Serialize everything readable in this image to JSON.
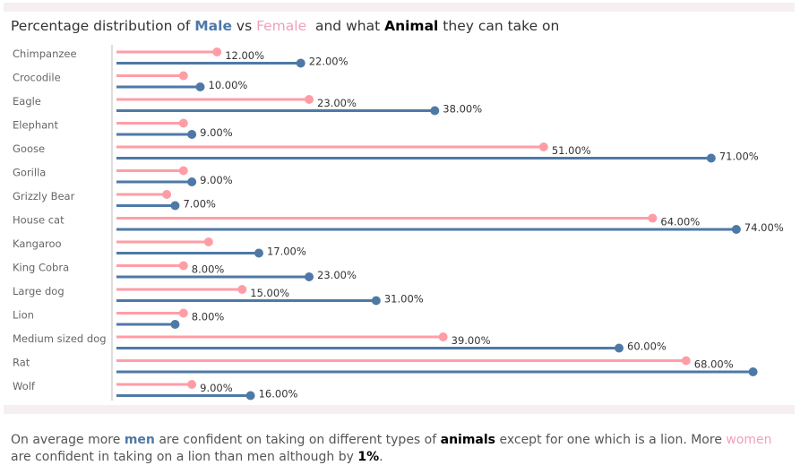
{
  "title": {
    "prefix": "Percentage distribution of ",
    "male": "Male",
    "vs": " vs ",
    "female": "Female",
    "mid": "  and what ",
    "animal": "Animal",
    "suffix": " they can take on"
  },
  "note": {
    "p1": "On average more ",
    "men": "men",
    "p2": " are confident on taking on different types of ",
    "animals": "animals",
    "p3": " except for one which is a lion. More ",
    "women": "women",
    "p4": " are confident in taking on a lion than men although by ",
    "pct": "1%",
    "p5": "."
  },
  "colors": {
    "female": "#ff9da7",
    "male": "#4e79a7"
  },
  "chart_data": {
    "type": "lollipop",
    "title": "Percentage distribution of Male vs Female and what Animal they can take on",
    "xlim": [
      0,
      78
    ],
    "categories": [
      "Chimpanzee",
      "Crocodile",
      "Eagle",
      "Elephant",
      "Goose",
      "Gorilla",
      "Grizzly Bear",
      "House cat",
      "Kangaroo",
      "King Cobra",
      "Large dog",
      "Lion",
      "Medium sized dog",
      "Rat",
      "Wolf"
    ],
    "series": [
      {
        "name": "Female",
        "values": [
          12,
          8,
          23,
          8,
          51,
          8,
          6,
          64,
          11,
          8,
          15,
          8,
          39,
          68,
          9
        ],
        "labels": [
          "12.00%",
          "",
          "23.00%",
          "",
          "51.00%",
          "",
          "",
          "64.00%",
          "",
          "8.00%",
          "15.00%",
          "8.00%",
          "39.00%",
          "68.00%",
          "9.00%"
        ]
      },
      {
        "name": "Male",
        "values": [
          22,
          10,
          38,
          9,
          71,
          9,
          7,
          74,
          17,
          23,
          31,
          7,
          60,
          76,
          16
        ],
        "labels": [
          "22.00%",
          "10.00%",
          "38.00%",
          "9.00%",
          "71.00%",
          "9.00%",
          "7.00%",
          "74.00%",
          "17.00%",
          "23.00%",
          "31.00%",
          "",
          "60.00%",
          "",
          "16.00%"
        ]
      }
    ]
  }
}
